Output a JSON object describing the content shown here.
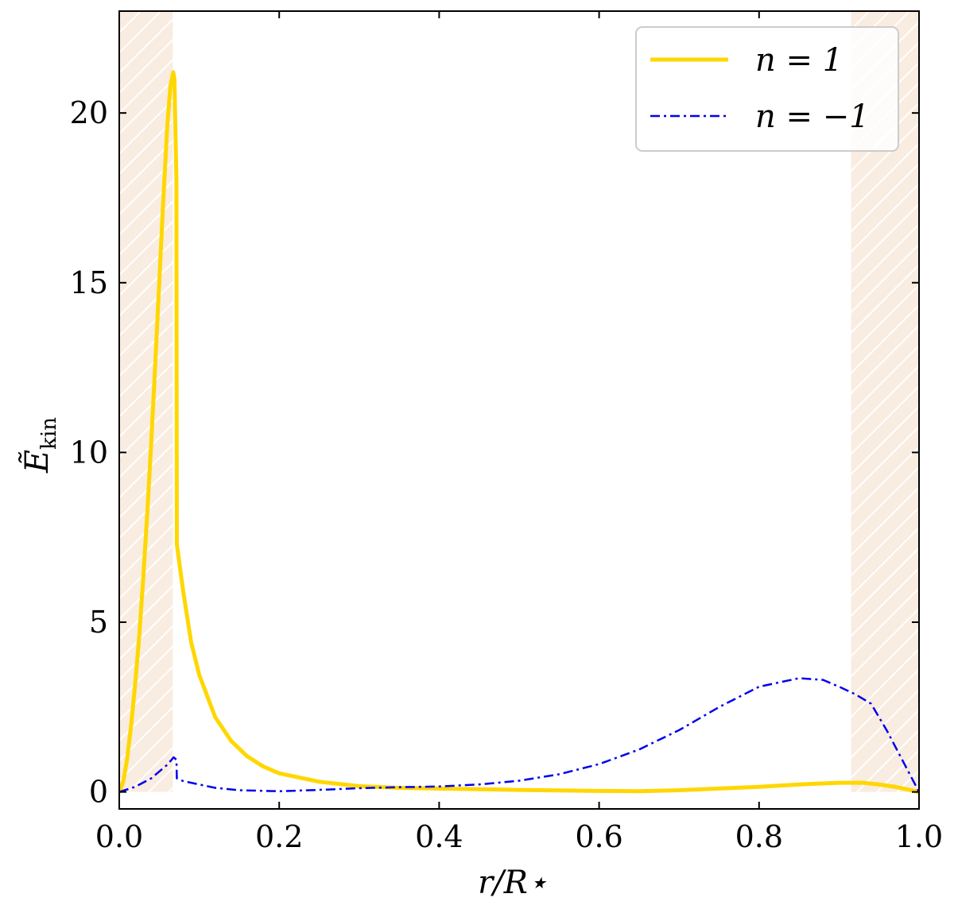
{
  "chart_data": {
    "type": "line",
    "xlabel": "r/R⋆",
    "ylabel": "Ẽ",
    "ylabel_sub": "kin",
    "xlim": [
      0.0,
      1.0
    ],
    "ylim": [
      -0.5,
      23.0
    ],
    "xticks": [
      0.0,
      0.2,
      0.4,
      0.6,
      0.8,
      1.0
    ],
    "xtick_labels": [
      "0.0",
      "0.2",
      "0.4",
      "0.6",
      "0.8",
      "1.0"
    ],
    "yticks": [
      0,
      5,
      10,
      15,
      20
    ],
    "ytick_labels": [
      "0",
      "5",
      "10",
      "15",
      "20"
    ],
    "grid": false,
    "legend_position": "top-right",
    "shaded_regions": [
      {
        "x": [
          0.0,
          0.067
        ],
        "color": "#f9ece0",
        "hatch": "diagonal"
      },
      {
        "x": [
          0.915,
          1.0
        ],
        "color": "#f9ece0",
        "hatch": "diagonal"
      }
    ],
    "series": [
      {
        "name": "n = 1",
        "color": "#ffd700",
        "style": "solid",
        "x": [
          0.0,
          0.005,
          0.01,
          0.015,
          0.02,
          0.025,
          0.03,
          0.035,
          0.04,
          0.045,
          0.05,
          0.055,
          0.06,
          0.064,
          0.0675,
          0.069,
          0.0715,
          0.072,
          0.08,
          0.09,
          0.1,
          0.12,
          0.14,
          0.16,
          0.18,
          0.2,
          0.25,
          0.3,
          0.35,
          0.4,
          0.5,
          0.6,
          0.65,
          0.7,
          0.8,
          0.85,
          0.9,
          0.93,
          0.95,
          0.97,
          1.0
        ],
        "values": [
          0.0,
          0.3,
          1.0,
          2.0,
          3.2,
          4.6,
          6.3,
          8.2,
          10.3,
          12.6,
          15.0,
          17.4,
          19.6,
          20.8,
          21.2,
          21.0,
          18.0,
          7.3,
          5.9,
          4.4,
          3.45,
          2.2,
          1.5,
          1.05,
          0.75,
          0.55,
          0.3,
          0.17,
          0.12,
          0.1,
          0.06,
          0.03,
          0.02,
          0.05,
          0.15,
          0.22,
          0.27,
          0.27,
          0.22,
          0.15,
          0.0
        ]
      },
      {
        "name": "n = −1",
        "color": "#0000ee",
        "style": "dashdot",
        "x": [
          0.0,
          0.02,
          0.04,
          0.06,
          0.068,
          0.0715,
          0.072,
          0.08,
          0.1,
          0.12,
          0.15,
          0.2,
          0.25,
          0.3,
          0.35,
          0.4,
          0.45,
          0.5,
          0.55,
          0.6,
          0.65,
          0.7,
          0.75,
          0.8,
          0.85,
          0.88,
          0.9,
          0.92,
          0.94,
          0.96,
          0.98,
          1.0
        ],
        "values": [
          0.0,
          0.15,
          0.4,
          0.8,
          1.02,
          0.95,
          0.4,
          0.32,
          0.22,
          0.12,
          0.05,
          0.02,
          0.06,
          0.11,
          0.14,
          0.16,
          0.22,
          0.33,
          0.52,
          0.82,
          1.25,
          1.82,
          2.5,
          3.1,
          3.35,
          3.3,
          3.1,
          2.88,
          2.6,
          1.8,
          0.9,
          0.0
        ]
      }
    ]
  }
}
